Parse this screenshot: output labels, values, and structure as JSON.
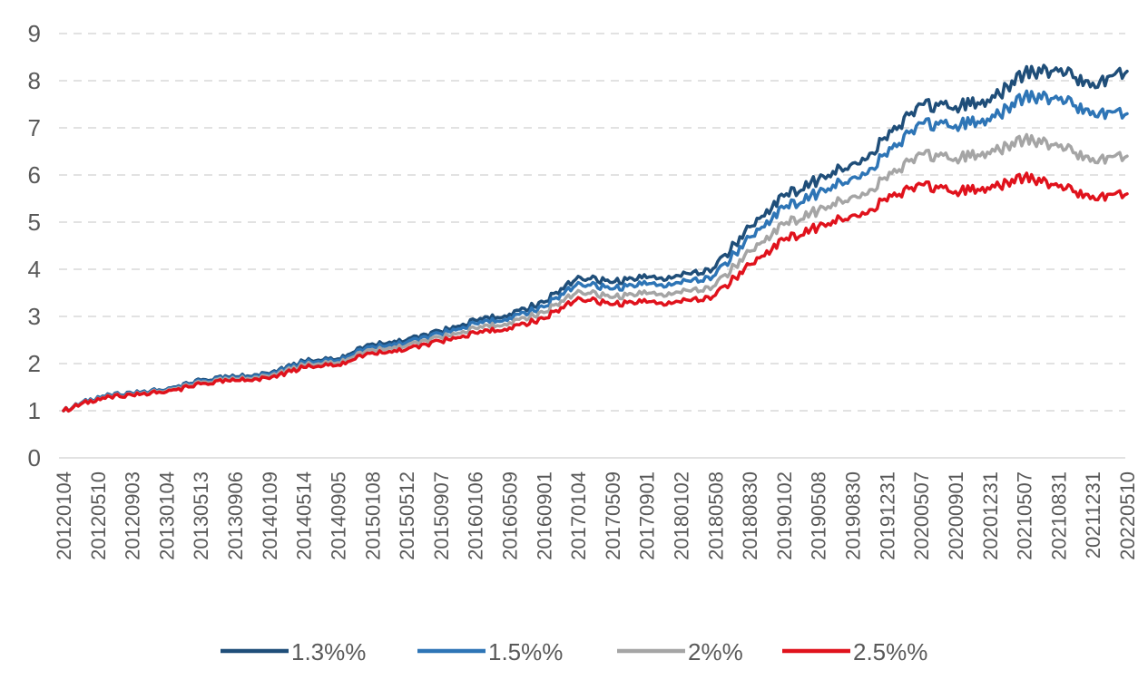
{
  "chart_data": {
    "type": "line",
    "title": "",
    "xlabel": "",
    "ylabel": "",
    "ylim": [
      0,
      9
    ],
    "yticks": [
      "0",
      "1",
      "2",
      "3",
      "4",
      "5",
      "6",
      "7",
      "8",
      "9"
    ],
    "grid": true,
    "legend_position": "bottom",
    "categories": [
      "20120104",
      "20120510",
      "20120903",
      "20130104",
      "20130513",
      "20130906",
      "20140109",
      "20140514",
      "20140905",
      "20150108",
      "20150512",
      "20150907",
      "20160106",
      "20160509",
      "20160901",
      "20170104",
      "20170509",
      "20170901",
      "20180102",
      "20180508",
      "20180830",
      "20190102",
      "20190508",
      "20190830",
      "20191231",
      "20200507",
      "20200901",
      "20201231",
      "20210507",
      "20210831",
      "20211231",
      "20220510"
    ],
    "series": [
      {
        "name": "1.3%%",
        "color": "#1f4e79",
        "values": [
          1.0,
          1.3,
          1.37,
          1.45,
          1.65,
          1.72,
          1.78,
          2.05,
          2.1,
          2.42,
          2.5,
          2.68,
          2.92,
          3.05,
          3.3,
          3.85,
          3.72,
          3.82,
          3.85,
          4.05,
          4.9,
          5.55,
          5.9,
          6.25,
          6.75,
          7.5,
          7.45,
          7.55,
          8.15,
          8.2,
          7.95,
          8.2
        ]
      },
      {
        "name": "1.5%%",
        "color": "#2e75b6",
        "values": [
          1.0,
          1.29,
          1.36,
          1.44,
          1.63,
          1.7,
          1.76,
          2.02,
          2.07,
          2.37,
          2.45,
          2.63,
          2.85,
          2.97,
          3.2,
          3.72,
          3.58,
          3.68,
          3.7,
          3.88,
          4.68,
          5.3,
          5.62,
          5.95,
          6.4,
          7.1,
          7.05,
          7.15,
          7.65,
          7.6,
          7.35,
          7.3
        ]
      },
      {
        "name": "2%%",
        "color": "#a5a5a5",
        "values": [
          1.0,
          1.27,
          1.34,
          1.42,
          1.6,
          1.67,
          1.72,
          1.97,
          2.02,
          2.3,
          2.38,
          2.55,
          2.75,
          2.87,
          3.08,
          3.55,
          3.4,
          3.48,
          3.5,
          3.66,
          4.38,
          4.95,
          5.25,
          5.55,
          5.9,
          6.45,
          6.35,
          6.45,
          6.75,
          6.6,
          6.35,
          6.4
        ]
      },
      {
        "name": "2.5%%",
        "color": "#e0121c",
        "values": [
          1.0,
          1.26,
          1.33,
          1.4,
          1.57,
          1.64,
          1.68,
          1.92,
          1.97,
          2.23,
          2.3,
          2.47,
          2.65,
          2.76,
          2.95,
          3.4,
          3.25,
          3.3,
          3.3,
          3.45,
          4.1,
          4.62,
          4.9,
          5.15,
          5.45,
          5.8,
          5.65,
          5.7,
          5.95,
          5.75,
          5.55,
          5.6
        ]
      }
    ]
  }
}
